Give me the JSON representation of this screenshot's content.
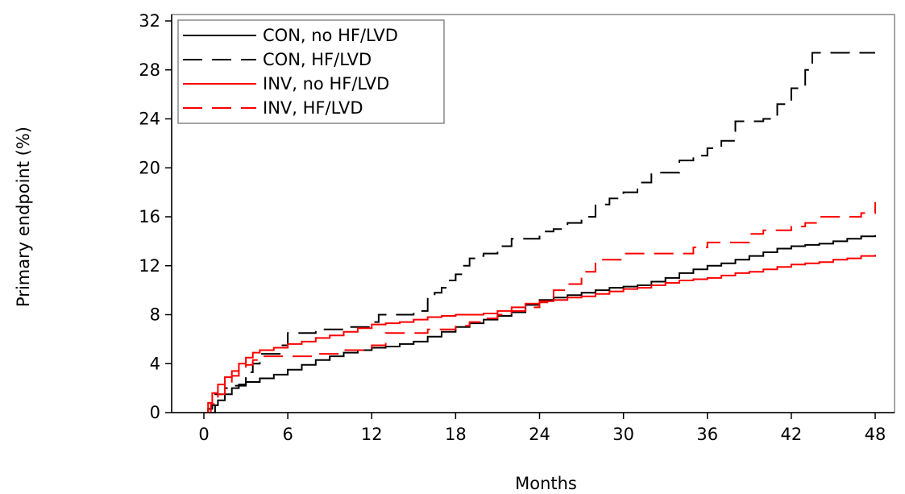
{
  "chart_data": {
    "type": "line",
    "subtype": "kaplan-meier step plot",
    "title": "",
    "xlabel": "Months",
    "ylabel": "Primary endpoint (%)",
    "xlim": [
      0,
      48
    ],
    "ylim": [
      0,
      32
    ],
    "xticks": [
      0,
      6,
      12,
      18,
      24,
      30,
      36,
      42,
      48
    ],
    "yticks": [
      0,
      4,
      8,
      12,
      16,
      20,
      24,
      28,
      32
    ],
    "grid": false,
    "legend_position": "top-left",
    "series": [
      {
        "name": "CON, no HF/LVD",
        "color": "#000000",
        "dash": "solid",
        "x": [
          0,
          0.3,
          0.6,
          1,
          1.5,
          2,
          2.5,
          3,
          4,
          5,
          6,
          7,
          8,
          9,
          10,
          11,
          12,
          13,
          14,
          15,
          16,
          17,
          18,
          19,
          20,
          21,
          22,
          23,
          24,
          25,
          26,
          27,
          28,
          29,
          30,
          31,
          32,
          33,
          34,
          35,
          36,
          37,
          38,
          39,
          40,
          41,
          42,
          43,
          44,
          45,
          46,
          47,
          48
        ],
        "y": [
          0,
          0.3,
          0.6,
          1.0,
          1.5,
          2.0,
          2.3,
          2.5,
          2.8,
          3.1,
          3.5,
          3.9,
          4.3,
          4.6,
          4.9,
          5.1,
          5.3,
          5.4,
          5.6,
          5.8,
          6.2,
          6.6,
          7.0,
          7.3,
          7.6,
          7.9,
          8.2,
          8.8,
          9.2,
          9.4,
          9.6,
          9.8,
          10.0,
          10.2,
          10.3,
          10.4,
          10.7,
          11.0,
          11.4,
          11.7,
          12.0,
          12.2,
          12.5,
          12.8,
          13.1,
          13.4,
          13.6,
          13.7,
          13.8,
          14.0,
          14.2,
          14.4,
          14.5
        ]
      },
      {
        "name": "CON, HF/LVD",
        "color": "#000000",
        "dash": "dashed",
        "x": [
          0,
          0.8,
          1.5,
          2.2,
          3,
          3.5,
          4,
          5.5,
          6,
          8,
          10,
          12,
          12.5,
          15,
          16,
          16.5,
          17,
          17.5,
          18,
          18.5,
          19,
          19.5,
          20,
          21,
          22,
          24,
          25,
          26,
          27,
          28,
          29,
          30,
          31,
          32,
          33,
          34,
          35,
          36,
          37,
          38,
          39,
          40,
          41,
          42,
          43,
          43.5,
          45,
          48
        ],
        "y": [
          0,
          1.5,
          2.0,
          2.2,
          3.3,
          4.0,
          4.8,
          5.5,
          6.5,
          6.8,
          7.0,
          7.4,
          8.0,
          8.3,
          9.4,
          9.8,
          10.2,
          10.8,
          11.3,
          12.0,
          12.6,
          12.8,
          13.0,
          13.6,
          14.2,
          14.8,
          15.0,
          15.5,
          16.0,
          17.0,
          17.5,
          18.0,
          18.8,
          19.6,
          19.6,
          20.6,
          21.0,
          21.6,
          22.2,
          23.8,
          23.8,
          24.0,
          25.2,
          26.5,
          28.0,
          29.4,
          29.4,
          29.4
        ]
      },
      {
        "name": "INV, no HF/LVD",
        "color": "#ff0000",
        "dash": "solid",
        "x": [
          0,
          0.3,
          0.6,
          1,
          1.5,
          2,
          2.5,
          3,
          3.5,
          4,
          5,
          6,
          7,
          8,
          9,
          10,
          11,
          12,
          13,
          14,
          15,
          16,
          17,
          18,
          19,
          20,
          21,
          22,
          23,
          24,
          25,
          26,
          27,
          28,
          29,
          30,
          31,
          32,
          33,
          34,
          35,
          36,
          37,
          38,
          39,
          40,
          41,
          42,
          43,
          44,
          45,
          46,
          47,
          48
        ],
        "y": [
          0,
          0.8,
          1.6,
          2.3,
          2.9,
          3.4,
          4.0,
          4.5,
          4.9,
          5.1,
          5.3,
          5.6,
          5.8,
          6.1,
          6.3,
          6.6,
          6.9,
          7.2,
          7.3,
          7.4,
          7.6,
          7.8,
          7.9,
          8.0,
          8.0,
          8.1,
          8.3,
          8.6,
          8.9,
          9.1,
          9.2,
          9.4,
          9.5,
          9.7,
          9.9,
          10.1,
          10.2,
          10.4,
          10.6,
          10.8,
          10.9,
          11.0,
          11.2,
          11.4,
          11.5,
          11.7,
          11.9,
          12.1,
          12.2,
          12.3,
          12.5,
          12.6,
          12.8,
          12.9
        ]
      },
      {
        "name": "INV, HF/LVD",
        "color": "#ff0000",
        "dash": "dashed",
        "x": [
          0,
          0.5,
          1,
          1.5,
          2,
          2.5,
          3,
          3.5,
          4,
          6,
          8,
          10,
          12,
          13,
          16,
          18,
          19,
          20,
          21,
          22,
          23,
          24,
          25,
          26,
          27,
          28,
          29,
          30,
          32,
          33,
          35,
          36,
          38,
          39,
          40,
          41,
          42,
          43,
          44,
          46,
          47,
          48
        ],
        "y": [
          0,
          0.7,
          1.5,
          2.3,
          3.0,
          3.6,
          3.9,
          4.3,
          4.6,
          4.6,
          4.8,
          5.1,
          5.5,
          6.5,
          6.8,
          7.1,
          7.4,
          7.7,
          8.0,
          8.3,
          8.6,
          9.0,
          10.0,
          10.5,
          11.5,
          12.5,
          12.5,
          13.0,
          13.0,
          13.0,
          13.5,
          13.9,
          13.9,
          14.6,
          14.9,
          14.9,
          15.2,
          15.5,
          16.0,
          16.0,
          16.3,
          17.2
        ]
      }
    ]
  }
}
